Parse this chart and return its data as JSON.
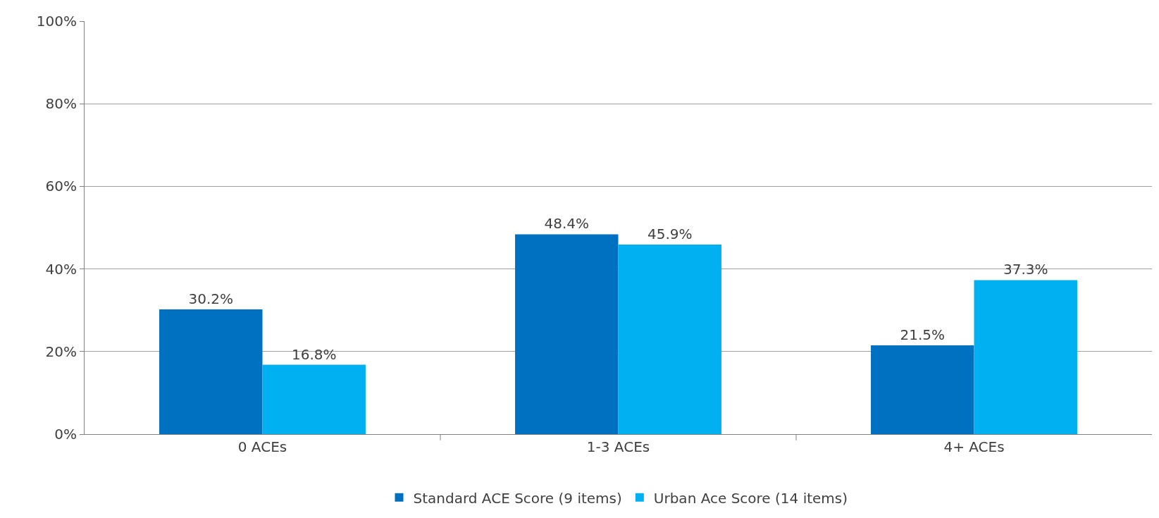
{
  "chart_data": {
    "type": "bar",
    "categories": [
      "0 ACEs",
      "1-3 ACEs",
      "4+ ACEs"
    ],
    "series": [
      {
        "name": "Standard ACE Score (9 items)",
        "color": "#0070c0",
        "values": [
          30.2,
          48.4,
          21.5
        ],
        "value_labels": [
          "30.2%",
          "48.4%",
          "21.5%"
        ]
      },
      {
        "name": "Urban Ace Score (14 items)",
        "color": "#00b0f0",
        "values": [
          16.8,
          45.9,
          37.3
        ],
        "value_labels": [
          "16.8%",
          "45.9%",
          "37.3%"
        ]
      }
    ],
    "ylim": [
      0,
      100
    ],
    "yticks": [
      {
        "value": 0,
        "label": "0%"
      },
      {
        "value": 20,
        "label": "20%"
      },
      {
        "value": 40,
        "label": "40%"
      },
      {
        "value": 60,
        "label": "60%"
      },
      {
        "value": 80,
        "label": "80%"
      },
      {
        "value": 100,
        "label": "100%"
      }
    ],
    "grid": "y",
    "legend": "bottom"
  }
}
